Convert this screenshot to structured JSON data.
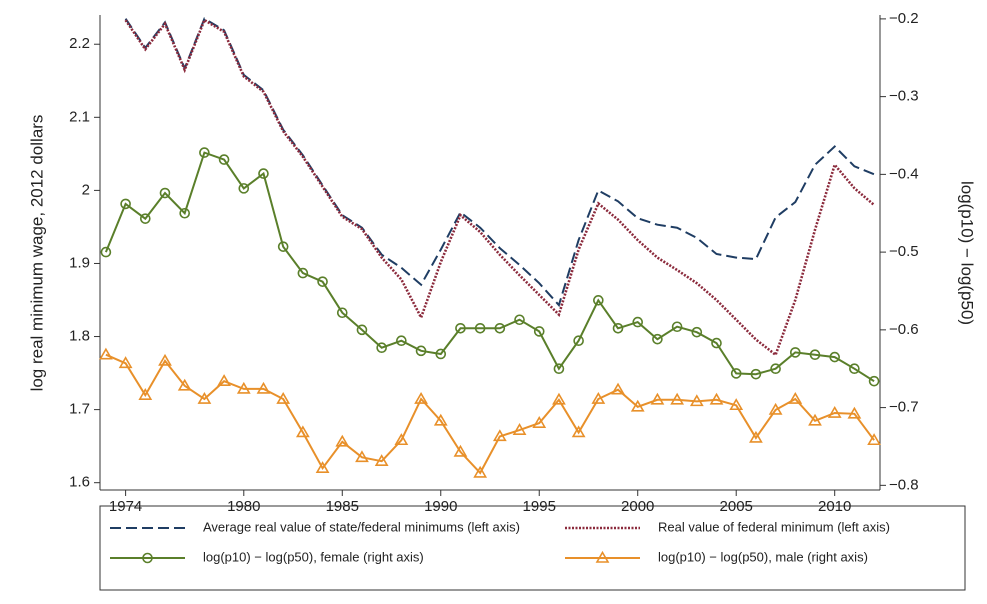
{
  "chart_data": {
    "type": "line",
    "ylabel": "log real minimum wage, 2012 dollars",
    "y2label": "log(p10) − log(p50)",
    "x": [
      1973,
      1974,
      1975,
      1976,
      1977,
      1978,
      1979,
      1980,
      1981,
      1982,
      1983,
      1984,
      1985,
      1986,
      1987,
      1988,
      1989,
      1990,
      1991,
      1992,
      1993,
      1994,
      1995,
      1996,
      1997,
      1998,
      1999,
      2000,
      2001,
      2002,
      2003,
      2004,
      2005,
      2006,
      2007,
      2008,
      2009,
      2010,
      2011,
      2012
    ],
    "xlim": [
      1972.7,
      2012.3
    ],
    "xticks": [
      1974,
      1980,
      1985,
      1990,
      1995,
      2000,
      2005,
      2010
    ],
    "ylim": [
      1.59,
      2.24
    ],
    "yticks": [
      1.6,
      1.7,
      1.8,
      1.9,
      2,
      2.1,
      2.2
    ],
    "y2lim": [
      -0.806,
      -0.195
    ],
    "y2ticks": [
      {
        "value": -0.8,
        "label": "−0.8"
      },
      {
        "value": -0.7,
        "label": "−0.7"
      },
      {
        "value": -0.6,
        "label": "−0.6"
      },
      {
        "value": -0.5,
        "label": "−0.5"
      },
      {
        "value": -0.4,
        "label": "−0.4"
      },
      {
        "value": -0.3,
        "label": "−0.3"
      },
      {
        "value": -0.2,
        "label": "−0.2"
      }
    ],
    "series": [
      {
        "name": "Average real value of state/federal minimums (left axis)",
        "color": "#1f3d63",
        "line_style": "dashed",
        "marker": "none",
        "values": [
          null,
          2.235,
          2.195,
          2.23,
          2.167,
          2.235,
          2.219,
          2.158,
          2.137,
          2.083,
          2.048,
          2.007,
          1.966,
          1.949,
          1.912,
          1.894,
          1.871,
          1.919,
          1.97,
          1.949,
          1.921,
          1.898,
          1.873,
          1.843,
          1.932,
          2.0,
          1.985,
          1.962,
          1.953,
          1.949,
          1.935,
          1.913,
          1.908,
          1.906,
          1.963,
          1.984,
          2.035,
          2.06,
          2.033,
          2.022
        ]
      },
      {
        "name": "Real value of federal minimum (left axis)",
        "color": "#8b2a3c",
        "line_style": "dotted",
        "marker": "none",
        "values": [
          null,
          2.233,
          2.193,
          2.228,
          2.165,
          2.233,
          2.217,
          2.156,
          2.135,
          2.081,
          2.046,
          2.005,
          1.964,
          1.947,
          1.908,
          1.878,
          1.826,
          1.902,
          1.966,
          1.943,
          1.912,
          1.884,
          1.857,
          1.83,
          1.919,
          1.982,
          1.96,
          1.932,
          1.908,
          1.891,
          1.873,
          1.85,
          1.823,
          1.796,
          1.775,
          1.85,
          1.946,
          2.035,
          2.003,
          1.98
        ]
      },
      {
        "name": "log(p10) − log(p50), female (right axis)",
        "color": "#5a7f2a",
        "line_style": "solid",
        "marker": "circle",
        "axis": "y2",
        "values": [
          -0.5,
          -0.438,
          -0.457,
          -0.424,
          -0.45,
          -0.372,
          -0.381,
          -0.418,
          -0.399,
          -0.493,
          -0.527,
          -0.538,
          -0.578,
          -0.6,
          -0.623,
          -0.614,
          -0.627,
          -0.631,
          -0.598,
          -0.598,
          -0.598,
          -0.587,
          -0.602,
          -0.65,
          -0.614,
          -0.562,
          -0.598,
          -0.59,
          -0.612,
          -0.596,
          -0.603,
          -0.617,
          -0.656,
          -0.657,
          -0.65,
          -0.629,
          -0.632,
          -0.635,
          -0.65,
          -0.666
        ]
      },
      {
        "name": "log(p10) − log(p50), male (right axis)",
        "color": "#e8902a",
        "line_style": "solid",
        "marker": "triangle",
        "axis": "y2",
        "values": [
          -0.632,
          -0.643,
          -0.684,
          -0.64,
          -0.672,
          -0.689,
          -0.666,
          -0.676,
          -0.676,
          -0.689,
          -0.732,
          -0.778,
          -0.744,
          -0.764,
          -0.769,
          -0.742,
          -0.689,
          -0.717,
          -0.757,
          -0.784,
          -0.737,
          -0.729,
          -0.72,
          -0.69,
          -0.732,
          -0.689,
          -0.677,
          -0.699,
          -0.69,
          -0.69,
          -0.692,
          -0.69,
          -0.697,
          -0.739,
          -0.703,
          -0.689,
          -0.717,
          -0.707,
          -0.708,
          -0.742
        ]
      }
    ]
  }
}
